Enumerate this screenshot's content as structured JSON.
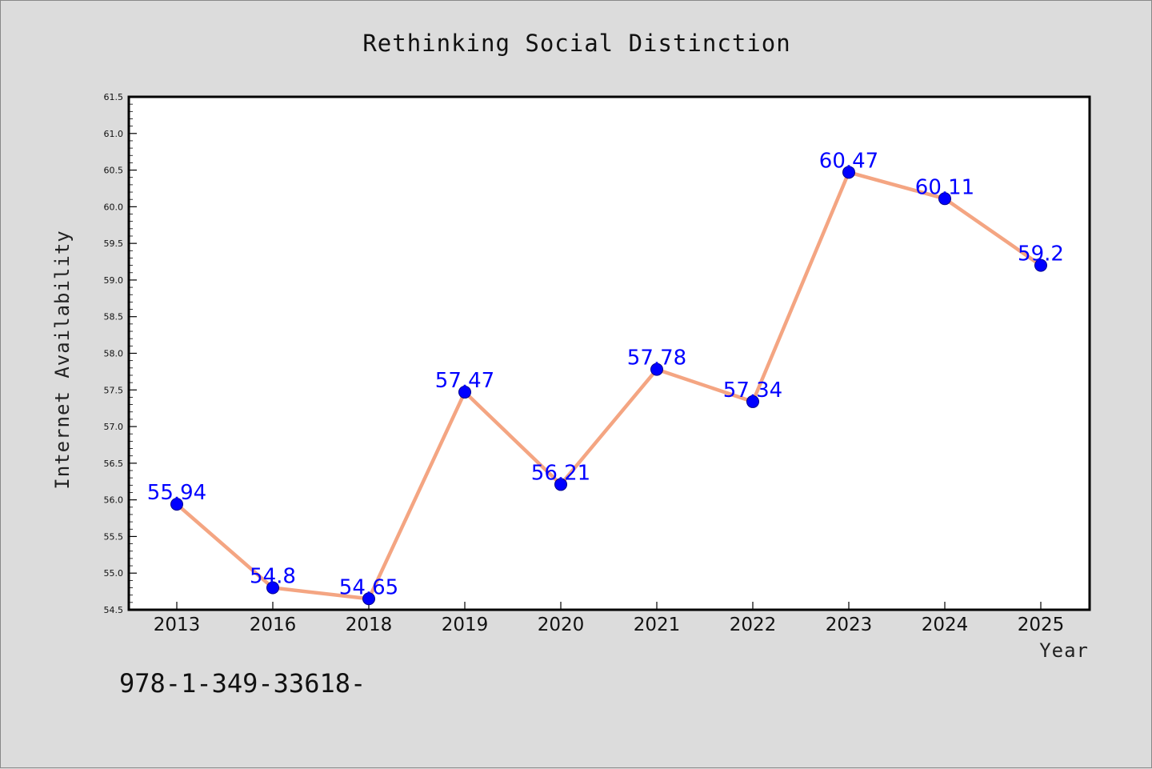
{
  "chart_data": {
    "type": "line",
    "title": "Rethinking Social Distinction",
    "xlabel": "Year",
    "ylabel": "Internet Availability",
    "categories": [
      "2013",
      "2016",
      "2018",
      "2019",
      "2020",
      "2021",
      "2022",
      "2023",
      "2024",
      "2025"
    ],
    "series": [
      {
        "values": [
          55.94,
          54.8,
          54.65,
          57.47,
          56.21,
          57.78,
          57.34,
          60.47,
          60.11,
          59.2
        ],
        "data_labels": [
          "55.94",
          "54.8",
          "54.65",
          "57.47",
          "56.21",
          "57.78",
          "57.34",
          "60.47",
          "60.11",
          "59.2"
        ],
        "line_color": "#f4a582",
        "marker_color": "#0000ff",
        "label_color": "#0000ff"
      }
    ],
    "ylim": [
      54.5,
      61.5
    ],
    "yticks": [
      "54.5",
      "55.0",
      "55.5",
      "56.0",
      "56.5",
      "57.0",
      "57.5",
      "58.0",
      "58.5",
      "59.0",
      "59.5",
      "60.0",
      "60.5",
      "61.0",
      "61.5"
    ],
    "grid": false,
    "legend": "none"
  },
  "footer": {
    "code": "978-1-349-33618-"
  }
}
